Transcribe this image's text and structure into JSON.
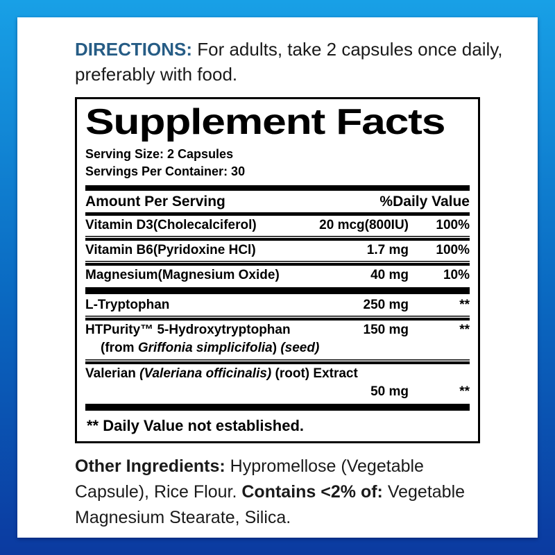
{
  "colors": {
    "frame_gradient_top": "#18a0e6",
    "frame_gradient_bottom": "#0b3aa0",
    "directions_label": "#265c85",
    "panel_background": "#ffffff",
    "rule_color": "#000000"
  },
  "directions": {
    "label": "DIRECTIONS:",
    "text": " For adults, take 2 capsules once daily, preferably with food."
  },
  "panel": {
    "title": "Supplement Facts",
    "serving_size": "Serving Size: 2 Capsules",
    "servings_per_container": "Servings Per Container: 30",
    "header": {
      "left": "Amount Per Serving",
      "right": "%Daily Value"
    },
    "rows": [
      {
        "name": "Vitamin D3(Cholecalciferol)",
        "amount": "20 mcg(800IU)",
        "dv": "100%"
      },
      {
        "name": "Vitamin B6(Pyridoxine HCl)",
        "amount": "1.7 mg",
        "dv": "100%"
      },
      {
        "name": "Magnesium(Magnesium Oxide)",
        "amount": "40 mg",
        "dv": "10%"
      },
      {
        "name": "L-Tryptophan",
        "amount": "250 mg",
        "dv": "**"
      },
      {
        "name": "HTPurity™  5-Hydroxytryptophan",
        "amount": "150 mg",
        "dv": "**",
        "subline": {
          "p1": "(from ",
          "p2_italic": "Griffonia simplicifolia",
          "p3": ") ",
          "p4_italic": "(seed)"
        }
      },
      {
        "name_p1": "Valerian ",
        "name_p2_italic": "(Valeriana officinalis)",
        "name_p3": " (root) Extract",
        "amount": "50 mg",
        "dv": "**"
      }
    ],
    "footnote": "** Daily Value not established."
  },
  "other_ingredients": {
    "label": "Other Ingredients:",
    "text1": "  Hypromellose (Vegetable Capsule), Rice Flour. ",
    "contains_label": "Contains <2% of:",
    "text2": " Vegetable Magnesium Stearate, Silica."
  }
}
